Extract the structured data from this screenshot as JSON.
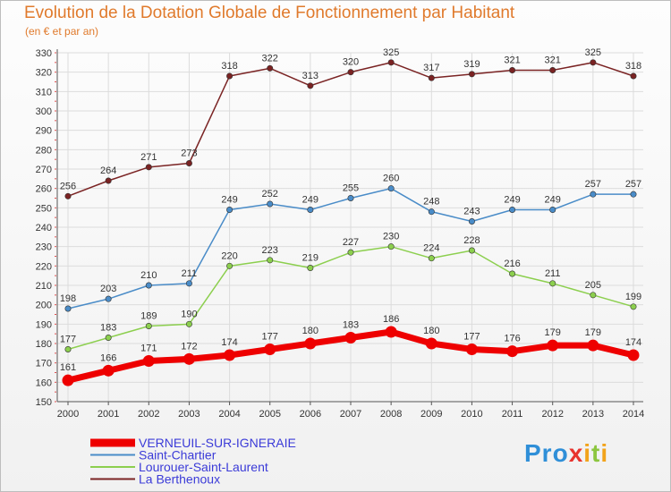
{
  "chart_data": {
    "type": "line",
    "title": "Evolution de la Dotation Globale de Fonctionnement par Habitant",
    "subtitle": "(en € et par an)",
    "xlabel": "",
    "ylabel": "",
    "ylim": [
      150,
      330
    ],
    "yticks": [
      150,
      160,
      170,
      180,
      190,
      200,
      210,
      220,
      230,
      240,
      250,
      260,
      270,
      280,
      290,
      300,
      310,
      320,
      330
    ],
    "x": [
      "2000",
      "2001",
      "2002",
      "2003",
      "2004",
      "2005",
      "2006",
      "2007",
      "2008",
      "2009",
      "2010",
      "2011",
      "2012",
      "2013",
      "2014"
    ],
    "grid": true,
    "legend_position": "bottom-left",
    "series": [
      {
        "name": "VERNEUIL-SUR-IGNERAIE",
        "color": "#ee0000",
        "values": [
          161,
          166,
          171,
          172,
          174,
          177,
          180,
          183,
          186,
          180,
          177,
          176,
          179,
          179,
          174
        ]
      },
      {
        "name": "Saint-Chartier",
        "color": "#4a8cc8",
        "values": [
          198,
          203,
          210,
          211,
          249,
          252,
          249,
          255,
          260,
          248,
          243,
          249,
          249,
          257,
          257
        ]
      },
      {
        "name": "Lourouer-Saint-Laurent",
        "color": "#8ccf4e",
        "values": [
          177,
          183,
          189,
          190,
          220,
          223,
          219,
          227,
          230,
          224,
          228,
          216,
          211,
          205,
          199
        ]
      },
      {
        "name": "La Berthenoux",
        "color": "#7a2323",
        "values": [
          256,
          264,
          271,
          273,
          318,
          322,
          313,
          320,
          325,
          317,
          319,
          321,
          321,
          325,
          318
        ]
      }
    ]
  },
  "logo": {
    "p1": "Pro",
    "x": "x",
    "i1": "i",
    "t": "t",
    "i2": "i"
  }
}
